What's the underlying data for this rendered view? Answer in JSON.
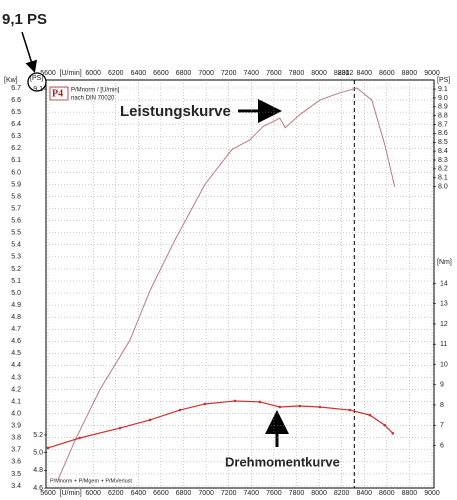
{
  "chart_data": {
    "type": "line",
    "title": "9,1 PS",
    "logo": "P4",
    "subtitle": "P/Mnorm / [U/min]",
    "norm": "nach DIN 70020",
    "footer": "P/Mnorm + P/Mgem + P/MVerlust",
    "x_label": "[U/min]",
    "y_label": "[Kw]",
    "ps_label": "[PS]",
    "y2_label": "[Nm]",
    "xlim": [
      5600,
      9000
    ],
    "xticks": [
      5600,
      6000,
      6200,
      6400,
      6600,
      6800,
      7000,
      7200,
      7400,
      7600,
      7800,
      8000,
      8200,
      8400,
      8600,
      8800,
      9000
    ],
    "ylim": [
      3.4,
      6.7
    ],
    "yticks": [
      6.7,
      6.6,
      6.5,
      6.4,
      6.3,
      6.2,
      6.1,
      {
        "value": 6,
        "label": "6.0"
      },
      5.9,
      5.8,
      5.7,
      5.6,
      5.5,
      5.4,
      5.3,
      5.2,
      5.1,
      {
        "value": 5,
        "label": "5.0"
      },
      4.9,
      4.8,
      4.7,
      4.6,
      4.5,
      4.4,
      4.3,
      4.2,
      4.1,
      {
        "value": 4,
        "label": "4.0"
      },
      3.9,
      3.8,
      3.7,
      3.6,
      3.5,
      3.4
    ],
    "ps_ylim": [
      4.624,
      9.112
    ],
    "ps_yticks": [
      9.1,
      {
        "value": 9,
        "label": "9.0"
      },
      8.9,
      8.8,
      8.7,
      8.6,
      8.5,
      8.4,
      8.3,
      8.2,
      8.1,
      {
        "value": 8,
        "label": "8.0"
      }
    ],
    "ps_left_yticks": [
      9.1,
      5.2,
      {
        "value": 5,
        "label": "5.0"
      },
      4.8,
      4.6
    ],
    "y2lim": [
      4,
      23.65
    ],
    "y2ticks": [
      14,
      13,
      12,
      11,
      10,
      9,
      8,
      7,
      6
    ],
    "grid": true,
    "marker_rpm": 8312,
    "series": [
      {
        "name": "Leistungskurve",
        "color": "#c27878",
        "x": [
          5688,
          5840,
          6060,
          6326,
          6503,
          6724,
          6989,
          7228,
          7388,
          7503,
          7653,
          7700,
          7830,
          8007,
          8184,
          8335,
          8467,
          8582,
          8670
        ],
        "values": [
          3.45,
          3.78,
          4.2,
          4.61,
          5.02,
          5.44,
          5.9,
          6.19,
          6.27,
          6.38,
          6.45,
          6.37,
          6.48,
          6.6,
          6.66,
          6.7,
          6.6,
          6.23,
          5.88
        ]
      },
      {
        "name": "Drehmomentkurve",
        "color": "#d03030",
        "axis": "y2",
        "x": [
          5600,
          5880,
          6237,
          6503,
          6768,
          6989,
          7255,
          7476,
          7653,
          7830,
          8007,
          8272,
          8450,
          8582,
          8653
        ],
        "values": [
          5.88,
          6.37,
          6.86,
          7.26,
          7.75,
          8.05,
          8.2,
          8.15,
          7.9,
          7.95,
          7.9,
          7.75,
          7.5,
          7.0,
          6.6
        ]
      }
    ]
  }
}
